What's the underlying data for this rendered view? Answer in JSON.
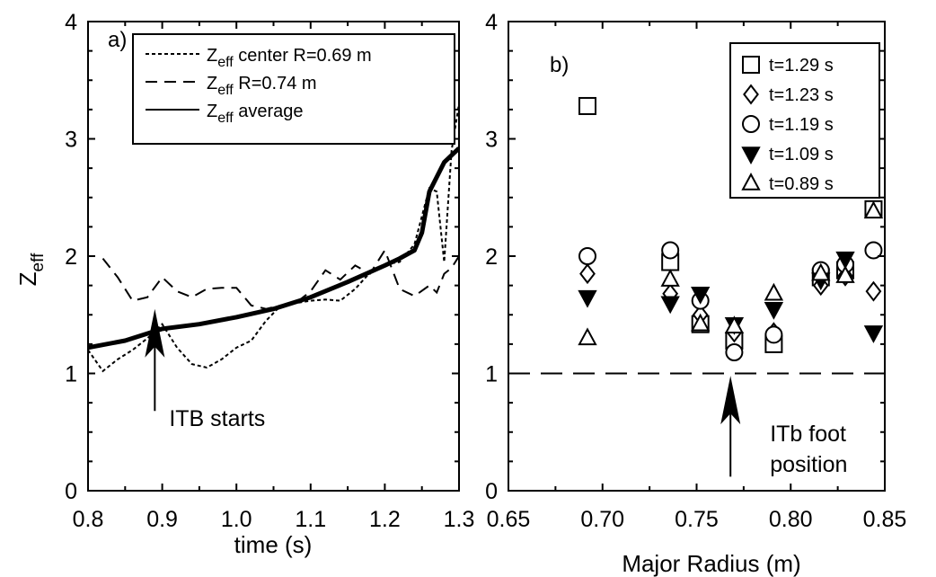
{
  "chart_data": [
    {
      "type": "line",
      "panel_label": "a)",
      "xlabel": "time (s)",
      "ylabel": {
        "main": "Z",
        "sub": "eff"
      },
      "xlim": [
        0.8,
        1.3
      ],
      "ylim": [
        0,
        4
      ],
      "xticks": [
        0.8,
        0.9,
        1.0,
        1.1,
        1.2,
        1.3
      ],
      "xtick_labels": [
        "0.8",
        "0.9",
        "1.0",
        "1.1",
        "1.2",
        "1.3"
      ],
      "yticks": [
        0,
        1,
        2,
        3,
        4
      ],
      "ytick_labels": [
        "0",
        "1",
        "2",
        "3",
        "4"
      ],
      "legend_position": "top-right",
      "series": [
        {
          "key": "center",
          "legend": {
            "main": "Z",
            "sub": "eff",
            "rest": " center R=0.69 m"
          },
          "style": "dotted",
          "x": [
            0.8,
            0.82,
            0.84,
            0.86,
            0.88,
            0.9,
            0.92,
            0.94,
            0.96,
            0.98,
            1.0,
            1.02,
            1.04,
            1.06,
            1.08,
            1.1,
            1.12,
            1.14,
            1.16,
            1.18,
            1.2,
            1.22,
            1.24,
            1.26,
            1.27,
            1.28,
            1.29,
            1.3
          ],
          "y": [
            1.2,
            1.02,
            1.12,
            1.2,
            1.3,
            1.42,
            1.22,
            1.08,
            1.05,
            1.12,
            1.22,
            1.28,
            1.45,
            1.58,
            1.6,
            1.62,
            1.63,
            1.62,
            1.72,
            1.86,
            1.93,
            1.95,
            2.1,
            2.58,
            2.55,
            1.95,
            2.9,
            3.3
          ]
        },
        {
          "key": "r074",
          "legend": {
            "main": "Z",
            "sub": "eff",
            "rest": " R=0.74 m"
          },
          "style": "dashed",
          "x": [
            0.82,
            0.84,
            0.86,
            0.88,
            0.9,
            0.92,
            0.94,
            0.96,
            0.98,
            1.0,
            1.02,
            1.04,
            1.06,
            1.08,
            1.1,
            1.12,
            1.14,
            1.16,
            1.18,
            1.2,
            1.22,
            1.24,
            1.26,
            1.27,
            1.28,
            1.29,
            1.3
          ],
          "y": [
            1.98,
            1.82,
            1.62,
            1.65,
            1.82,
            1.7,
            1.65,
            1.72,
            1.73,
            1.73,
            1.58,
            1.55,
            1.58,
            1.6,
            1.7,
            1.88,
            1.8,
            1.92,
            1.85,
            2.05,
            1.72,
            1.66,
            1.75,
            1.69,
            1.85,
            1.9,
            2.0
          ]
        },
        {
          "key": "average",
          "legend": {
            "main": "Z",
            "sub": "eff",
            "rest": " average"
          },
          "style": "solid",
          "x": [
            0.8,
            0.85,
            0.9,
            0.95,
            1.0,
            1.05,
            1.1,
            1.15,
            1.2,
            1.22,
            1.24,
            1.25,
            1.26,
            1.28,
            1.3
          ],
          "y": [
            1.22,
            1.28,
            1.38,
            1.42,
            1.48,
            1.55,
            1.65,
            1.78,
            1.92,
            1.98,
            2.05,
            2.2,
            2.55,
            2.8,
            2.92
          ]
        }
      ],
      "annotations": [
        {
          "text": "ITB starts",
          "x": 0.89,
          "y": 0.55,
          "arrow": {
            "x": 0.89,
            "y_from": 0.68,
            "y_to": 1.55
          }
        }
      ]
    },
    {
      "type": "scatter",
      "panel_label": "b)",
      "xlabel": "Major Radius (m)",
      "ylabel": "",
      "xlim": [
        0.65,
        0.85
      ],
      "ylim": [
        0,
        4
      ],
      "xticks": [
        0.65,
        0.7,
        0.75,
        0.8,
        0.85
      ],
      "xtick_labels": [
        "0.65",
        "0.70",
        "0.75",
        "0.80",
        "0.85"
      ],
      "yticks": [
        0,
        1,
        2,
        3,
        4
      ],
      "ytick_labels": [
        "0",
        "1",
        "2",
        "3",
        "4"
      ],
      "legend_position": "top-right",
      "reference_line": {
        "y": 1.0,
        "style": "dashed"
      },
      "series": [
        {
          "name": "t=1.29 s",
          "marker": "square",
          "x": [
            0.692,
            0.736,
            0.752,
            0.77,
            0.791,
            0.816,
            0.829,
            0.844
          ],
          "y": [
            3.28,
            1.95,
            1.42,
            1.28,
            1.25,
            1.82,
            1.88,
            2.4
          ]
        },
        {
          "name": "t=1.23 s",
          "marker": "diamond",
          "x": [
            0.692,
            0.736,
            0.752,
            0.77,
            0.791,
            0.816,
            0.829,
            0.844
          ],
          "y": [
            1.85,
            1.68,
            1.5,
            1.35,
            1.35,
            1.75,
            1.83,
            1.7
          ]
        },
        {
          "name": "t=1.19 s",
          "marker": "circle",
          "x": [
            0.692,
            0.736,
            0.752,
            0.77,
            0.791,
            0.816,
            0.829,
            0.844
          ],
          "y": [
            2.0,
            2.05,
            1.62,
            1.18,
            1.33,
            1.88,
            1.93,
            2.05
          ]
        },
        {
          "name": "t=1.09 s",
          "marker": "triangle-down",
          "x": [
            0.692,
            0.736,
            0.752,
            0.77,
            0.791,
            0.816,
            0.829,
            0.844
          ],
          "y": [
            1.65,
            1.6,
            1.68,
            1.42,
            1.55,
            1.8,
            1.98,
            1.35
          ]
        },
        {
          "name": "t=0.89 s",
          "marker": "triangle-up",
          "x": [
            0.692,
            0.736,
            0.752,
            0.77,
            0.791,
            0.816,
            0.829,
            0.844
          ],
          "y": [
            1.3,
            1.8,
            1.42,
            1.4,
            1.68,
            1.85,
            1.83,
            2.38
          ]
        }
      ],
      "annotations": [
        {
          "text_lines": [
            "ITb foot",
            "position"
          ],
          "x": 0.768,
          "y": 0.42,
          "arrow": {
            "x": 0.768,
            "y_from": 0.12,
            "y_to": 0.98
          }
        }
      ]
    }
  ]
}
